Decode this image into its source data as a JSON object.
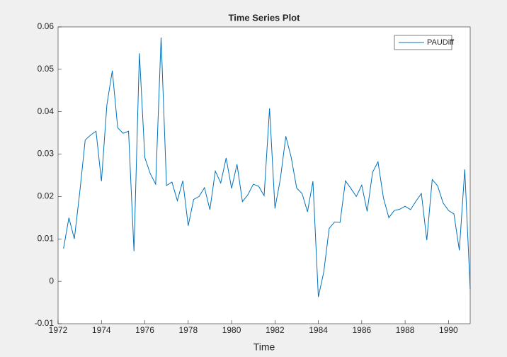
{
  "chart_data": {
    "type": "line",
    "title": "Time Series Plot",
    "x_label": "Time",
    "x": [
      1972.25,
      1972.5,
      1972.75,
      1973,
      1973.25,
      1973.5,
      1973.75,
      1974,
      1974.25,
      1974.5,
      1974.75,
      1975,
      1975.25,
      1975.5,
      1975.75,
      1976,
      1976.25,
      1976.5,
      1976.75,
      1977,
      1977.25,
      1977.5,
      1977.75,
      1978,
      1978.25,
      1978.5,
      1978.75,
      1979,
      1979.25,
      1979.5,
      1979.75,
      1980,
      1980.25,
      1980.5,
      1980.75,
      1981,
      1981.25,
      1981.5,
      1981.75,
      1982,
      1982.25,
      1982.5,
      1982.75,
      1983,
      1983.25,
      1983.5,
      1983.75,
      1984,
      1984.25,
      1984.5,
      1984.75,
      1985,
      1985.25,
      1985.5,
      1985.75,
      1986,
      1986.25,
      1986.5,
      1986.75,
      1987,
      1987.25,
      1987.5,
      1987.75,
      1988,
      1988.25,
      1988.5,
      1988.75,
      1989,
      1989.25,
      1989.5,
      1989.75,
      1990,
      1990.25,
      1990.5,
      1990.75,
      1991
    ],
    "series": [
      {
        "name": "PAUDiff",
        "color": "#0072bd",
        "values": [
          0.0077,
          0.015,
          0.01,
          0.021,
          0.0333,
          0.0345,
          0.0354,
          0.0236,
          0.0416,
          0.0497,
          0.0362,
          0.0349,
          0.0354,
          0.0071,
          0.0538,
          0.0292,
          0.0254,
          0.0229,
          0.0575,
          0.0226,
          0.0234,
          0.019,
          0.0237,
          0.0131,
          0.0193,
          0.02,
          0.0221,
          0.0169,
          0.026,
          0.0232,
          0.0291,
          0.0219,
          0.0276,
          0.0188,
          0.0204,
          0.0229,
          0.0224,
          0.0202,
          0.0408,
          0.0172,
          0.0242,
          0.0342,
          0.0292,
          0.022,
          0.0207,
          0.0164,
          0.0236,
          -0.0037,
          0.0022,
          0.0125,
          0.014,
          0.0139,
          0.0237,
          0.0219,
          0.02,
          0.0227,
          0.0165,
          0.0257,
          0.0282,
          0.0197,
          0.015,
          0.0167,
          0.017,
          0.0177,
          0.0169,
          0.0189,
          0.0207,
          0.0097,
          0.024,
          0.0225,
          0.0185,
          0.0167,
          0.0159,
          0.0073,
          0.0264,
          -0.0019
        ]
      }
    ],
    "xlim": [
      1972,
      1991
    ],
    "xticks": [
      1972,
      1974,
      1976,
      1978,
      1980,
      1982,
      1984,
      1986,
      1988,
      1990
    ],
    "ylim": [
      -0.01,
      0.06
    ],
    "yticks": [
      -0.01,
      0,
      0.01,
      0.02,
      0.03,
      0.04,
      0.05,
      0.06
    ],
    "legend": "top-right",
    "grid": false
  }
}
